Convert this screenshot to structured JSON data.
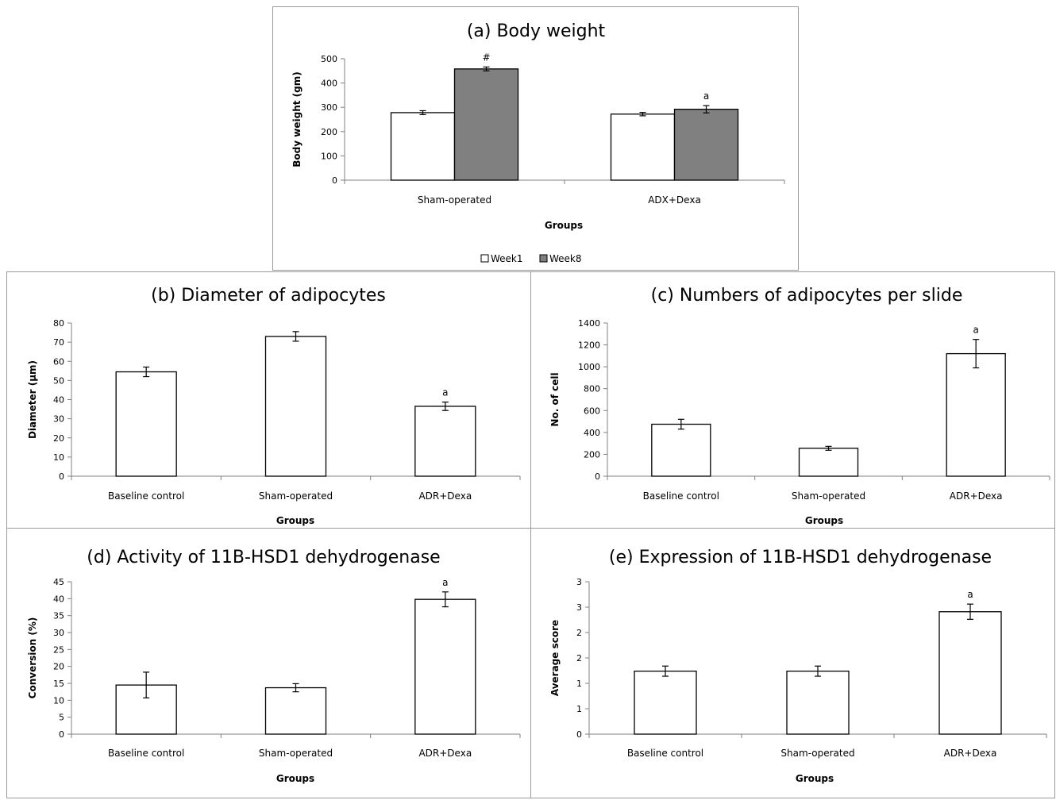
{
  "chart_data": [
    {
      "id": "a",
      "type": "bar",
      "title": "(a) Body weight",
      "xlabel": "Groups",
      "ylabel": "Body weight (gm)",
      "ylim": [
        0,
        500
      ],
      "yticks": [
        0,
        100,
        200,
        300,
        400,
        500
      ],
      "categories": [
        "Sham-operated",
        "ADX+Dexa"
      ],
      "series": [
        {
          "name": "Week1",
          "color": "#ffffff",
          "values": [
            278,
            272
          ],
          "errors": [
            8,
            7
          ]
        },
        {
          "name": "Week8",
          "color": "#808080",
          "values": [
            458,
            292
          ],
          "errors": [
            8,
            15
          ]
        }
      ],
      "annotations": [
        {
          "series": 1,
          "category": 0,
          "text": "#"
        },
        {
          "series": 1,
          "category": 1,
          "text": "a"
        }
      ],
      "legend": "bottom",
      "grid": false
    },
    {
      "id": "b",
      "type": "bar",
      "title": "(b) Diameter of adipocytes",
      "xlabel": "Groups",
      "ylabel": "Diameter (µm)",
      "ylim": [
        0,
        80
      ],
      "yticks": [
        0,
        10,
        20,
        30,
        40,
        50,
        60,
        70,
        80
      ],
      "categories": [
        "Baseline control",
        "Sham-operated",
        "ADR+Dexa"
      ],
      "series": [
        {
          "color": "#ffffff",
          "values": [
            54.5,
            73,
            36.5
          ],
          "errors": [
            2.5,
            2.5,
            2.2
          ]
        }
      ],
      "annotations": [
        {
          "series": 0,
          "category": 2,
          "text": "a"
        }
      ],
      "grid": false
    },
    {
      "id": "c",
      "type": "bar",
      "title": "(c) Numbers of adipocytes per slide",
      "xlabel": "Groups",
      "ylabel": "No. of cell",
      "ylim": [
        0,
        1400
      ],
      "yticks": [
        0,
        200,
        400,
        600,
        800,
        1000,
        1200,
        1400
      ],
      "categories": [
        "Baseline control",
        "Sham-operated",
        "ADR+Dexa"
      ],
      "series": [
        {
          "color": "#ffffff",
          "values": [
            475,
            255,
            1120
          ],
          "errors": [
            45,
            18,
            130
          ]
        }
      ],
      "annotations": [
        {
          "series": 0,
          "category": 2,
          "text": "a"
        }
      ],
      "grid": false
    },
    {
      "id": "d",
      "type": "bar",
      "title": "(d) Activity of 11B-HSD1 dehydrogenase",
      "xlabel": "Groups",
      "ylabel": "Conversion (%)",
      "ylim": [
        0,
        45
      ],
      "yticks": [
        0,
        5,
        10,
        15,
        20,
        25,
        30,
        35,
        40,
        45
      ],
      "categories": [
        "Baseline control",
        "Sham-operated",
        "ADR+Dexa"
      ],
      "series": [
        {
          "color": "#ffffff",
          "values": [
            14.5,
            13.7,
            39.8
          ],
          "errors": [
            3.8,
            1.2,
            2.2
          ]
        }
      ],
      "annotations": [
        {
          "series": 0,
          "category": 2,
          "text": "a"
        }
      ],
      "grid": false
    },
    {
      "id": "e",
      "type": "bar",
      "title": "(e) Expression of 11B-HSD1 dehydrogenase",
      "xlabel": "Groups",
      "ylabel": "Average score",
      "ylim": [
        0,
        3
      ],
      "yticks": [
        0,
        0.5,
        1,
        1.5,
        2,
        2.5,
        3
      ],
      "ytick_labels": [
        "0",
        "1",
        "1",
        "2",
        "2",
        "3",
        "3"
      ],
      "categories": [
        "Baseline control",
        "Sham-operated",
        "ADR+Dexa"
      ],
      "series": [
        {
          "color": "#ffffff",
          "values": [
            1.24,
            1.24,
            2.41
          ],
          "errors": [
            0.1,
            0.1,
            0.15
          ]
        }
      ],
      "annotations": [
        {
          "series": 0,
          "category": 2,
          "text": "a"
        }
      ],
      "grid": false
    }
  ]
}
